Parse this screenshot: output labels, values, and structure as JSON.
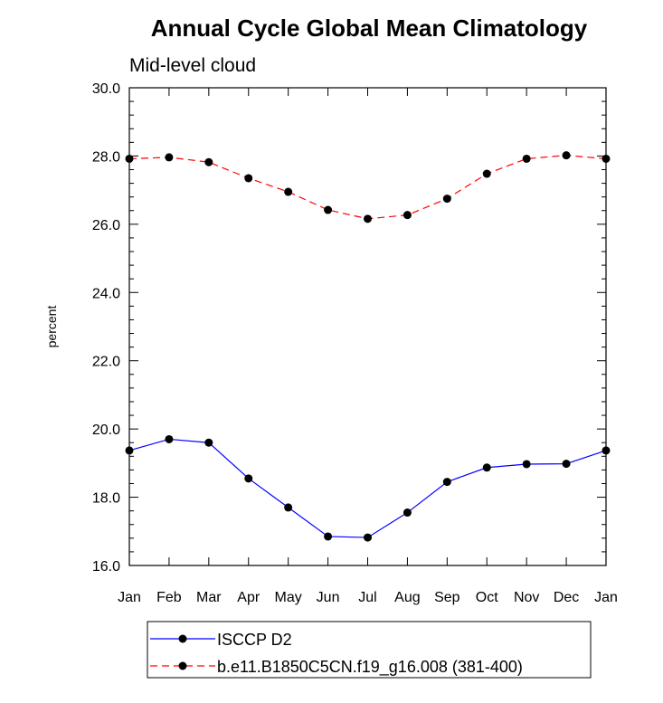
{
  "chart_data": {
    "type": "line",
    "title": "Annual Cycle Global Mean Climatology",
    "subtitle": "Mid-level cloud",
    "ylabel": "percent",
    "xlabel": "",
    "categories": [
      "Jan",
      "Feb",
      "Mar",
      "Apr",
      "May",
      "Jun",
      "Jul",
      "Aug",
      "Sep",
      "Oct",
      "Nov",
      "Dec",
      "Jan"
    ],
    "ylim": [
      16.0,
      30.0
    ],
    "yticks": [
      "16.0",
      "18.0",
      "20.0",
      "22.0",
      "24.0",
      "26.0",
      "28.0",
      "30.0"
    ],
    "grid": false,
    "legend_position": "bottom",
    "series": [
      {
        "name": "ISCCP D2",
        "color": "#0000ff",
        "dash": "solid",
        "values": [
          19.37,
          19.7,
          19.6,
          18.55,
          17.7,
          16.85,
          16.82,
          17.55,
          18.45,
          18.87,
          18.97,
          18.98,
          19.37
        ]
      },
      {
        "name": "b.e11.B1850C5CN.f19_g16.008 (381-400)",
        "color": "#ff0000",
        "dash": "dashed",
        "values": [
          27.92,
          27.96,
          27.82,
          27.35,
          26.95,
          26.42,
          26.16,
          26.27,
          26.75,
          27.48,
          27.92,
          28.02,
          27.92
        ]
      }
    ]
  }
}
